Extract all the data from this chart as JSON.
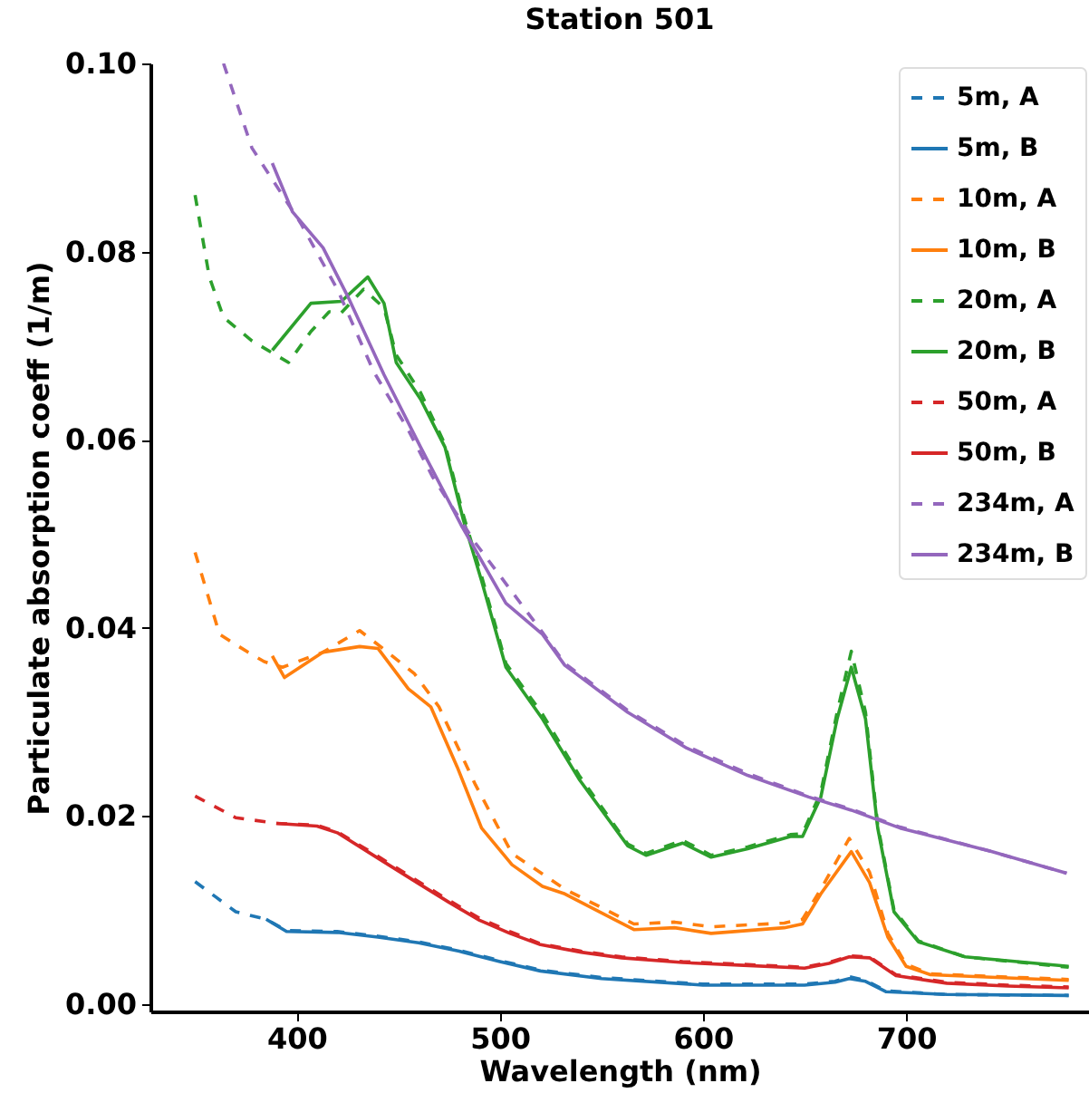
{
  "chart_data": {
    "type": "line",
    "title": "Station 501",
    "xlabel": "Wavelength (nm)",
    "ylabel": "Particulate absorption coeff (1/m)",
    "xlim": [
      328,
      790
    ],
    "ylim": [
      -0.0008,
      0.1
    ],
    "xticks": [
      400,
      500,
      600,
      700
    ],
    "yticks": [
      {
        "value": 0,
        "label": "0.00"
      },
      {
        "value": 0.02,
        "label": "0.02"
      },
      {
        "value": 0.04,
        "label": "0.04"
      },
      {
        "value": 0.06,
        "label": "0.06"
      },
      {
        "value": 0.08,
        "label": "0.08"
      },
      {
        "value": 0.1,
        "label": "0.10"
      }
    ],
    "legend": "top right",
    "marker": "none",
    "series": [
      {
        "name": "5m, A",
        "color": "#1f77b4",
        "line_style": "dashed",
        "x": [
          350,
          360,
          370,
          385,
          395,
          420,
          440,
          460,
          480,
          500,
          520,
          550,
          600,
          650,
          665,
          672,
          680,
          690,
          720,
          780
        ],
        "values": [
          0.013,
          0.0114,
          0.0098,
          0.009,
          0.0078,
          0.0077,
          0.0072,
          0.0066,
          0.0057,
          0.0046,
          0.0036,
          0.0028,
          0.0021,
          0.0021,
          0.0024,
          0.0029,
          0.0025,
          0.0014,
          0.001,
          0.0009
        ]
      },
      {
        "name": "5m, B",
        "color": "#1f77b4",
        "line_style": "solid",
        "x": [
          385,
          395,
          420,
          440,
          460,
          480,
          500,
          520,
          550,
          600,
          650,
          665,
          672,
          680,
          690,
          720,
          780
        ],
        "values": [
          0.009,
          0.0077,
          0.0076,
          0.0071,
          0.0065,
          0.0056,
          0.0045,
          0.0035,
          0.0027,
          0.002,
          0.002,
          0.0023,
          0.0027,
          0.0024,
          0.0013,
          0.001,
          0.0009
        ]
      },
      {
        "name": "10m, A",
        "color": "#ff7f0e",
        "line_style": "dashed",
        "x": [
          350,
          362,
          376,
          384,
          393,
          413,
          431,
          443,
          458,
          470,
          488,
          506,
          532,
          566,
          586,
          604,
          640,
          649,
          658,
          672,
          682,
          691,
          700,
          712,
          780
        ],
        "values": [
          0.048,
          0.0393,
          0.0374,
          0.0364,
          0.0358,
          0.0374,
          0.0397,
          0.0377,
          0.0351,
          0.0316,
          0.0233,
          0.016,
          0.0122,
          0.0085,
          0.0087,
          0.0082,
          0.0086,
          0.009,
          0.0122,
          0.0176,
          0.014,
          0.0075,
          0.0042,
          0.0032,
          0.0026
        ]
      },
      {
        "name": "10m, B",
        "color": "#ff7f0e",
        "line_style": "solid",
        "x": [
          388,
          394,
          413,
          431,
          440,
          455,
          466,
          479,
          491,
          506,
          521,
          532,
          566,
          586,
          604,
          640,
          649,
          658,
          673,
          682,
          691,
          700,
          712,
          780
        ],
        "values": [
          0.037,
          0.0347,
          0.0374,
          0.038,
          0.0378,
          0.0335,
          0.0316,
          0.0252,
          0.0187,
          0.0148,
          0.0125,
          0.0117,
          0.0079,
          0.0081,
          0.0075,
          0.0081,
          0.0085,
          0.0117,
          0.0162,
          0.0129,
          0.0071,
          0.004,
          0.0031,
          0.0025
        ]
      },
      {
        "name": "20m, A",
        "color": "#2ca02c",
        "line_style": "dashed",
        "x": [
          350,
          357,
          364,
          378,
          396,
          407,
          416,
          422,
          433,
          443,
          449,
          461,
          473,
          482,
          491,
          503,
          521,
          539,
          563,
          572,
          590,
          604,
          622,
          643,
          649,
          658,
          666,
          673,
          680,
          686,
          694,
          706,
          729,
          780
        ],
        "values": [
          0.086,
          0.0773,
          0.073,
          0.0705,
          0.0682,
          0.0715,
          0.0736,
          0.0735,
          0.076,
          0.074,
          0.069,
          0.065,
          0.0595,
          0.052,
          0.0455,
          0.0362,
          0.0308,
          0.0243,
          0.017,
          0.016,
          0.0174,
          0.0158,
          0.0167,
          0.018,
          0.0181,
          0.0225,
          0.031,
          0.0375,
          0.031,
          0.019,
          0.01,
          0.0067,
          0.005,
          0.0039
        ]
      },
      {
        "name": "20m, B",
        "color": "#2ca02c",
        "line_style": "solid",
        "x": [
          388,
          407,
          422,
          435,
          443,
          449,
          461,
          473,
          482,
          491,
          503,
          521,
          539,
          563,
          572,
          590,
          604,
          622,
          643,
          649,
          658,
          666,
          673,
          680,
          686,
          694,
          706,
          729,
          780
        ],
        "values": [
          0.0695,
          0.0745,
          0.0747,
          0.0773,
          0.0745,
          0.0682,
          0.0643,
          0.0592,
          0.0515,
          0.045,
          0.0358,
          0.0303,
          0.0239,
          0.0168,
          0.0158,
          0.0171,
          0.0156,
          0.0165,
          0.0178,
          0.0178,
          0.022,
          0.0303,
          0.0358,
          0.0303,
          0.0187,
          0.0098,
          0.0066,
          0.005,
          0.004
        ]
      },
      {
        "name": "50m, A",
        "color": "#d62728",
        "line_style": "dashed",
        "x": [
          350,
          370,
          390,
          410,
          420,
          440,
          460,
          475,
          490,
          505,
          520,
          540,
          560,
          590,
          620,
          650,
          662,
          672,
          682,
          695,
          720,
          750,
          780
        ],
        "values": [
          0.0221,
          0.0198,
          0.0192,
          0.019,
          0.0183,
          0.0157,
          0.013,
          0.011,
          0.0091,
          0.0077,
          0.0064,
          0.0056,
          0.005,
          0.0045,
          0.0042,
          0.0039,
          0.0044,
          0.0051,
          0.005,
          0.0031,
          0.0023,
          0.002,
          0.0018
        ]
      },
      {
        "name": "50m, B",
        "color": "#d62728",
        "line_style": "solid",
        "x": [
          390,
          410,
          420,
          440,
          460,
          475,
          490,
          505,
          520,
          540,
          560,
          590,
          620,
          650,
          662,
          672,
          682,
          695,
          720,
          750,
          780
        ],
        "values": [
          0.0192,
          0.0189,
          0.0182,
          0.0155,
          0.0128,
          0.0108,
          0.0089,
          0.0075,
          0.0063,
          0.0055,
          0.0049,
          0.0044,
          0.0041,
          0.0038,
          0.0043,
          0.005,
          0.0049,
          0.003,
          0.0022,
          0.0019,
          0.0017
        ]
      },
      {
        "name": "234m, A",
        "color": "#9467bd",
        "line_style": "dashed",
        "x": [
          364,
          378,
          402,
          420,
          438,
          455,
          467,
          488,
          521,
          532,
          563,
          592,
          622,
          652,
          673,
          697,
          742,
          779
        ],
        "values": [
          0.1,
          0.091,
          0.083,
          0.076,
          0.0672,
          0.061,
          0.056,
          0.049,
          0.0395,
          0.0362,
          0.0312,
          0.0274,
          0.0245,
          0.0221,
          0.0207,
          0.0188,
          0.0162,
          0.0139
        ]
      },
      {
        "name": "234m, B",
        "color": "#9467bd",
        "line_style": "solid",
        "x": [
          388,
          398,
          413,
          425,
          443,
          461,
          481,
          503,
          521,
          532,
          563,
          592,
          622,
          652,
          673,
          697,
          742,
          779
        ],
        "values": [
          0.0894,
          0.0842,
          0.0804,
          0.0753,
          0.0669,
          0.0592,
          0.0509,
          0.0426,
          0.0393,
          0.036,
          0.031,
          0.0272,
          0.0243,
          0.022,
          0.0206,
          0.0187,
          0.0162,
          0.0139
        ]
      }
    ]
  }
}
